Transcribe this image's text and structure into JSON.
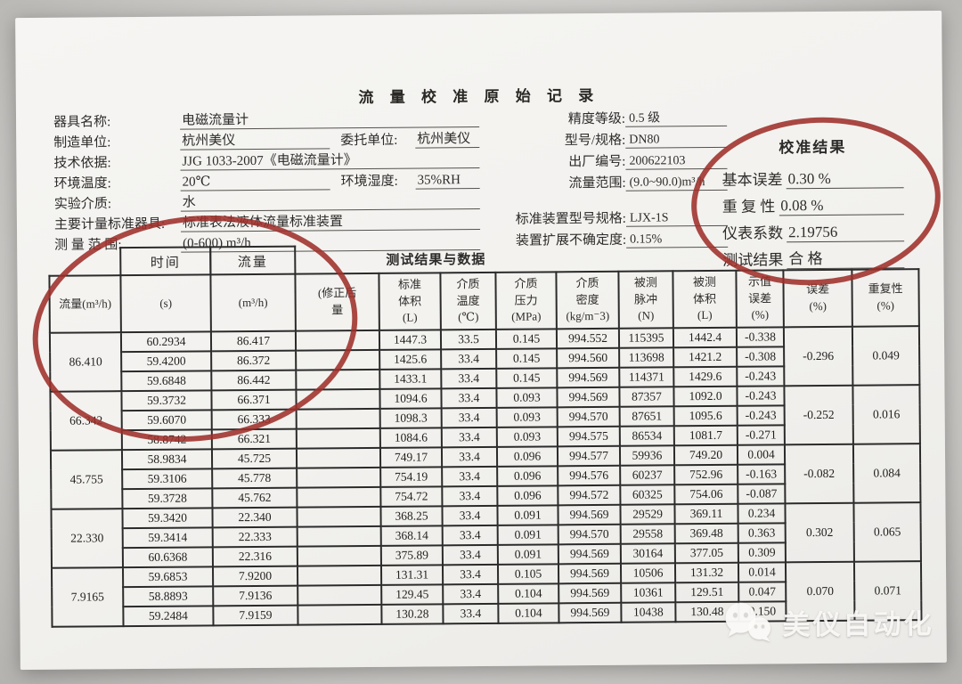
{
  "title": "流 量 校 准 原 始 记 录",
  "form": {
    "left": [
      {
        "label": "器具名称:",
        "value": "电磁流量计"
      },
      {
        "label": "制造单位:",
        "value": "杭州美仪",
        "label2": "委托单位:",
        "value2": "杭州美仪"
      },
      {
        "label": "技术依据:",
        "value": "JJG 1033-2007《电磁流量计》"
      },
      {
        "label": "环境温度:",
        "value": "20℃",
        "label2": "环境湿度:",
        "value2": "35%RH"
      },
      {
        "label": "实验介质:",
        "value": "水"
      },
      {
        "label": "主要计量标准器具:",
        "value": "标准表法液体流量标准装置"
      },
      {
        "label": "测 量 范 围:",
        "value": "(0-600) m³/h"
      }
    ],
    "right": [
      {
        "label": "精度等级:",
        "value": "0.5 级"
      },
      {
        "label": "型号/规格:",
        "value": "DN80"
      },
      {
        "label": "出厂编号:",
        "value": "200622103"
      },
      {
        "label": "流量范围:",
        "value": "(9.0~90.0)m³/h"
      },
      {
        "label": "标准装置型号规格:",
        "value": "LJX-1S"
      },
      {
        "label": "装置扩展不确定度:",
        "value": "0.15%"
      }
    ]
  },
  "calib": {
    "title": "校准结果",
    "items": [
      {
        "label": "基本误差",
        "value": "0.30 %"
      },
      {
        "label": "重 复 性",
        "value": "0.08 %"
      },
      {
        "label": "仪表系数",
        "value": "2.19756"
      },
      {
        "label": "测试结果",
        "value": "合 格"
      }
    ]
  },
  "table": {
    "section_title": "测试结果与数据",
    "columns": [
      {
        "lines": [
          "流量(m³/h)"
        ]
      },
      {
        "riser": "时间",
        "lines": [
          "(s)"
        ]
      },
      {
        "riser": "流量",
        "lines": [
          "(m³/h)"
        ]
      },
      {
        "lines": [
          "(修正后",
          "量"
        ]
      },
      {
        "lines": [
          "标准",
          "体积",
          "(L)"
        ]
      },
      {
        "lines": [
          "介质",
          "温度",
          "(℃)"
        ]
      },
      {
        "lines": [
          "介质",
          "压力",
          "(MPa)"
        ]
      },
      {
        "lines": [
          "介质",
          "密度",
          "(kg/m⁻3)"
        ]
      },
      {
        "lines": [
          "被测",
          "脉冲",
          "(N)"
        ]
      },
      {
        "lines": [
          "被测",
          "体积",
          "(L)"
        ]
      },
      {
        "lines": [
          "示值",
          "误差",
          "(%)"
        ]
      },
      {
        "lines": [
          "误差",
          "(%)"
        ]
      },
      {
        "lines": [
          "重复性",
          "(%)"
        ]
      }
    ],
    "groups": [
      {
        "flow": "86.410",
        "error": "-0.296",
        "repeat": "0.049",
        "rows": [
          {
            "time": "60.2934",
            "flow": "86.417",
            "corrected": "",
            "std_vol": "1447.3",
            "temp": "33.5",
            "press": "0.145",
            "density": "994.552",
            "pulse": "115395",
            "meas_vol": "1442.4",
            "ind_err": "-0.338"
          },
          {
            "time": "59.4200",
            "flow": "86.372",
            "corrected": "",
            "std_vol": "1425.6",
            "temp": "33.4",
            "press": "0.145",
            "density": "994.560",
            "pulse": "113698",
            "meas_vol": "1421.2",
            "ind_err": "-0.308"
          },
          {
            "time": "59.6848",
            "flow": "86.442",
            "corrected": "",
            "std_vol": "1433.1",
            "temp": "33.4",
            "press": "0.145",
            "density": "994.569",
            "pulse": "114371",
            "meas_vol": "1429.6",
            "ind_err": "-0.243"
          }
        ]
      },
      {
        "flow": "66.342",
        "error": "-0.252",
        "repeat": "0.016",
        "rows": [
          {
            "time": "59.3732",
            "flow": "66.371",
            "corrected": "",
            "std_vol": "1094.6",
            "temp": "33.4",
            "press": "0.093",
            "density": "994.569",
            "pulse": "87357",
            "meas_vol": "1092.0",
            "ind_err": "-0.243"
          },
          {
            "time": "59.6070",
            "flow": "66.333",
            "corrected": "",
            "std_vol": "1098.3",
            "temp": "33.4",
            "press": "0.093",
            "density": "994.570",
            "pulse": "87651",
            "meas_vol": "1095.6",
            "ind_err": "-0.243"
          },
          {
            "time": "58.8742",
            "flow": "66.321",
            "corrected": "",
            "std_vol": "1084.6",
            "temp": "33.4",
            "press": "0.093",
            "density": "994.575",
            "pulse": "86534",
            "meas_vol": "1081.7",
            "ind_err": "-0.271"
          }
        ]
      },
      {
        "flow": "45.755",
        "error": "-0.082",
        "repeat": "0.084",
        "rows": [
          {
            "time": "58.9834",
            "flow": "45.725",
            "corrected": "",
            "std_vol": "749.17",
            "temp": "33.4",
            "press": "0.096",
            "density": "994.577",
            "pulse": "59936",
            "meas_vol": "749.20",
            "ind_err": "0.004"
          },
          {
            "time": "59.3106",
            "flow": "45.778",
            "corrected": "",
            "std_vol": "754.19",
            "temp": "33.4",
            "press": "0.096",
            "density": "994.576",
            "pulse": "60237",
            "meas_vol": "752.96",
            "ind_err": "-0.163"
          },
          {
            "time": "59.3728",
            "flow": "45.762",
            "corrected": "",
            "std_vol": "754.72",
            "temp": "33.4",
            "press": "0.096",
            "density": "994.572",
            "pulse": "60325",
            "meas_vol": "754.06",
            "ind_err": "-0.087"
          }
        ]
      },
      {
        "flow": "22.330",
        "error": "0.302",
        "repeat": "0.065",
        "rows": [
          {
            "time": "59.3420",
            "flow": "22.340",
            "corrected": "",
            "std_vol": "368.25",
            "temp": "33.4",
            "press": "0.091",
            "density": "994.569",
            "pulse": "29529",
            "meas_vol": "369.11",
            "ind_err": "0.234"
          },
          {
            "time": "59.3414",
            "flow": "22.333",
            "corrected": "",
            "std_vol": "368.14",
            "temp": "33.4",
            "press": "0.091",
            "density": "994.570",
            "pulse": "29558",
            "meas_vol": "369.48",
            "ind_err": "0.363"
          },
          {
            "time": "60.6368",
            "flow": "22.316",
            "corrected": "",
            "std_vol": "375.89",
            "temp": "33.4",
            "press": "0.091",
            "density": "994.569",
            "pulse": "30164",
            "meas_vol": "377.05",
            "ind_err": "0.309"
          }
        ]
      },
      {
        "flow": "7.9165",
        "error": "0.070",
        "repeat": "0.071",
        "rows": [
          {
            "time": "59.6853",
            "flow": "7.9200",
            "corrected": "",
            "std_vol": "131.31",
            "temp": "33.4",
            "press": "0.105",
            "density": "994.569",
            "pulse": "10506",
            "meas_vol": "131.32",
            "ind_err": "0.014"
          },
          {
            "time": "58.8893",
            "flow": "7.9136",
            "corrected": "",
            "std_vol": "129.45",
            "temp": "33.4",
            "press": "0.104",
            "density": "994.569",
            "pulse": "10361",
            "meas_vol": "129.51",
            "ind_err": "0.047"
          },
          {
            "time": "59.2484",
            "flow": "7.9159",
            "corrected": "",
            "std_vol": "130.28",
            "temp": "33.4",
            "press": "0.104",
            "density": "994.569",
            "pulse": "10438",
            "meas_vol": "130.48",
            "ind_err": "0.150"
          }
        ]
      }
    ]
  },
  "annotations": {
    "circle_color": "#9e2f2a"
  },
  "watermark": {
    "text": "美仪自动化",
    "icon": "wechat-icon"
  }
}
